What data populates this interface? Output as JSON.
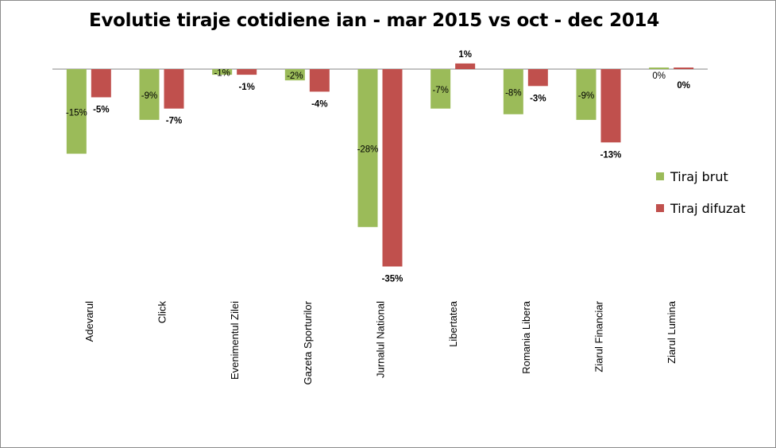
{
  "chart_data": {
    "type": "bar",
    "title": "Evolutie tiraje cotidiene ian - mar 2015 vs oct - dec 2014",
    "xlabel": "",
    "ylabel": "",
    "categories": [
      "Adevarul",
      "Click",
      "Evenimentul Zilei",
      "Gazeta Sporturilor",
      "Jurnalul National",
      "Libertatea",
      "Romania Libera",
      "Ziarul Financiar",
      "Ziarul Lumina"
    ],
    "series": [
      {
        "name": "Tiraj brut",
        "color": "#9bbb59",
        "values": [
          -15,
          -9,
          -1,
          -2,
          -28,
          -7,
          -8,
          -9,
          0
        ],
        "labels": [
          "-15%",
          "-9%",
          "-1%",
          "-2%",
          "-28%",
          "-7%",
          "-8%",
          "-9%",
          "0%"
        ]
      },
      {
        "name": "Tiraj difuzat",
        "color": "#c0504d",
        "values": [
          -5,
          -7,
          -1,
          -4,
          -35,
          1,
          -3,
          -13,
          0
        ],
        "labels": [
          "-5%",
          "-7%",
          "-1%",
          "-4%",
          "-35%",
          "1%",
          "-3%",
          "-13%",
          "0%"
        ]
      }
    ],
    "unit": "%",
    "ylim": [
      -35,
      1
    ],
    "grid": false,
    "axis_visible": false,
    "legend_position": "right"
  }
}
